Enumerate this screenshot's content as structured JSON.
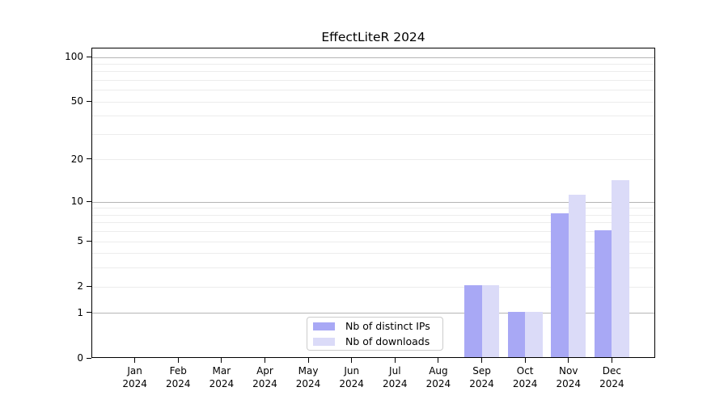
{
  "title": "EffectLiteR 2024",
  "legend": {
    "items": [
      {
        "label": "Nb of distinct IPs",
        "color": "#a8a8f5"
      },
      {
        "label": "Nb of downloads",
        "color": "#dbdbf8"
      }
    ]
  },
  "axes": {
    "y_tick_labels": [
      "0",
      "1",
      "2",
      "5",
      "10",
      "20",
      "50",
      "100"
    ]
  },
  "chart_data": {
    "type": "bar",
    "title": "EffectLiteR 2024",
    "categories": [
      "Jan 2024",
      "Feb 2024",
      "Mar 2024",
      "Apr 2024",
      "May 2024",
      "Jun 2024",
      "Jul 2024",
      "Aug 2024",
      "Sep 2024",
      "Oct 2024",
      "Nov 2024",
      "Dec 2024"
    ],
    "series": [
      {
        "name": "Nb of distinct IPs",
        "color": "#a8a8f5",
        "values": [
          0,
          0,
          0,
          0,
          0,
          0,
          0,
          0,
          2,
          1,
          8,
          6
        ]
      },
      {
        "name": "Nb of downloads",
        "color": "#dbdbf8",
        "values": [
          0,
          0,
          0,
          0,
          0,
          0,
          0,
          0,
          2,
          1,
          11,
          14
        ]
      }
    ],
    "xlabel": "",
    "ylabel": "",
    "y_scale": "log1p",
    "y_ticks": [
      0,
      1,
      2,
      5,
      10,
      20,
      50,
      100
    ],
    "y_major_gridlines": [
      1,
      10,
      100
    ],
    "y_minor_gridlines": [
      2,
      3,
      4,
      5,
      6,
      7,
      8,
      9,
      20,
      30,
      40,
      50,
      60,
      70,
      80,
      90
    ],
    "ylim": [
      0,
      115
    ],
    "grid": true,
    "legend_position": "bottom-center",
    "colors": {
      "major_gridline": "#b5b5b5",
      "minor_gridline": "#ececec",
      "axis": "#000000",
      "background": "#ffffff"
    }
  }
}
